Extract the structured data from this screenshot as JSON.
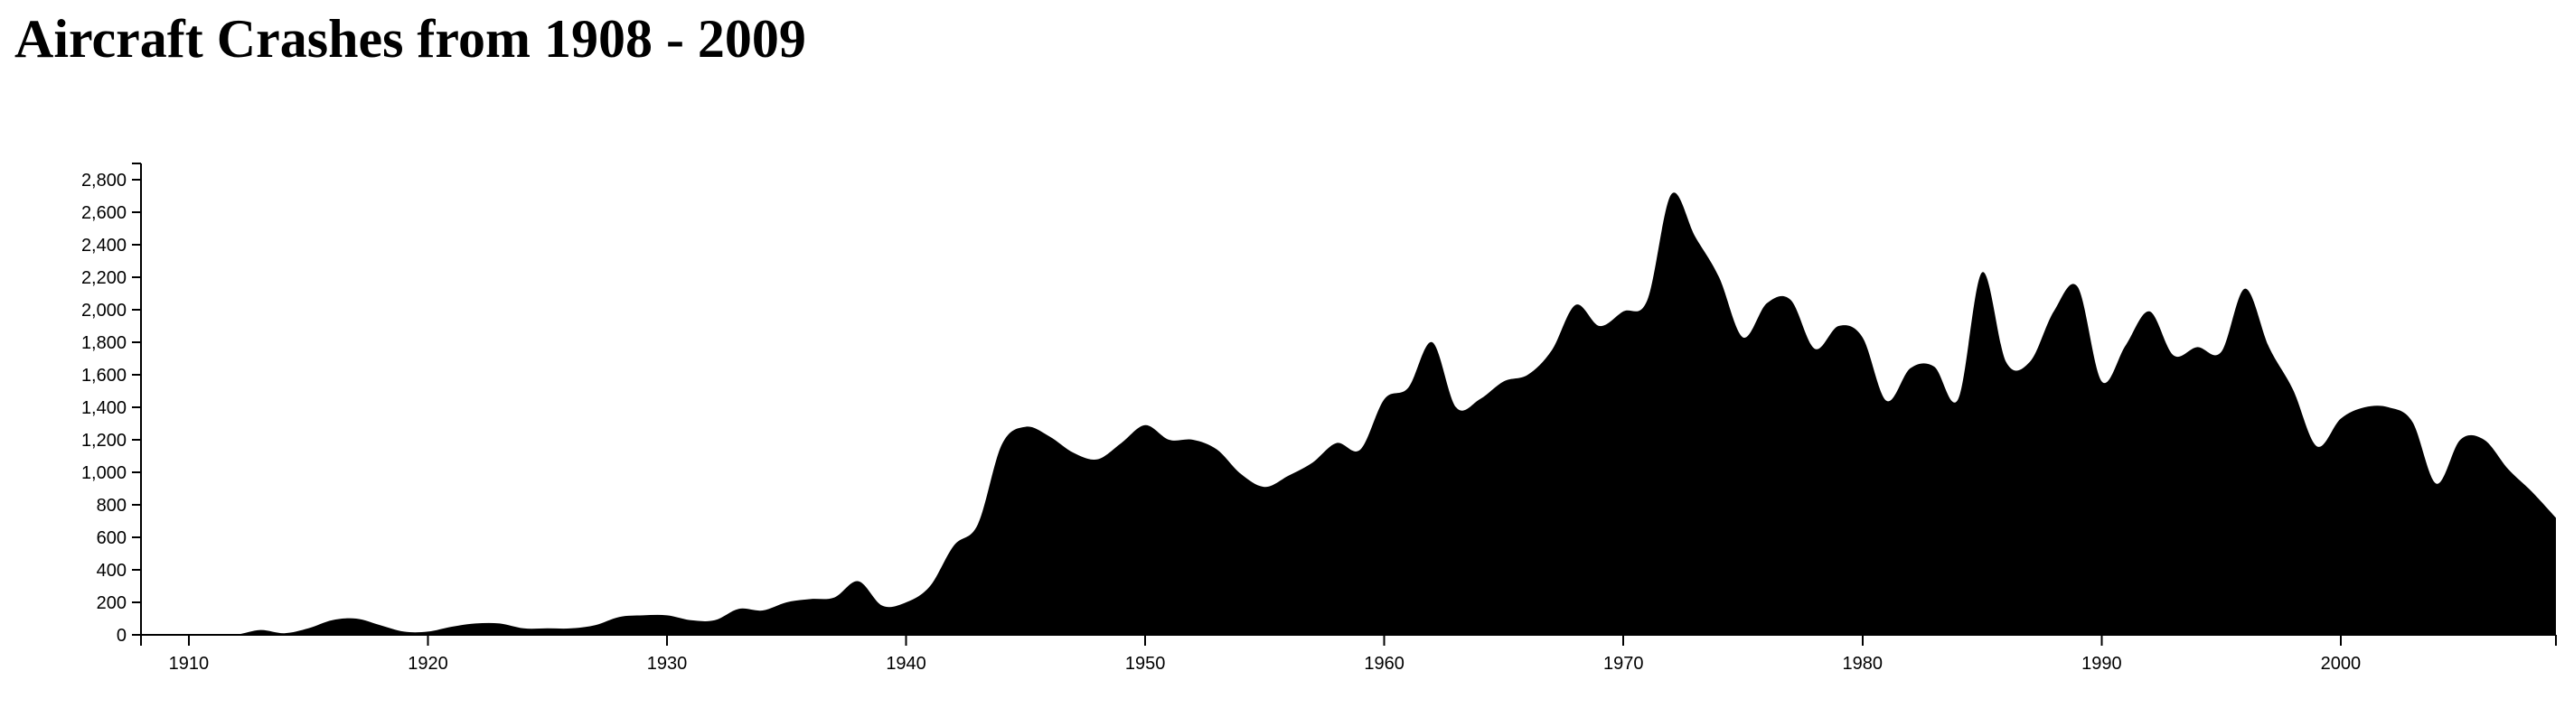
{
  "chart_data": {
    "type": "area",
    "title": "Aircraft Crashes from 1908 - 2009",
    "xlabel": "",
    "ylabel": "",
    "xlim": [
      1908,
      2009
    ],
    "ylim": [
      0,
      2900
    ],
    "grid": false,
    "legend": "none",
    "fill_color": "#000000",
    "x_ticks": [
      1910,
      1920,
      1930,
      1940,
      1950,
      1960,
      1970,
      1980,
      1990,
      2000
    ],
    "x_tick_labels": [
      "1910",
      "1920",
      "1930",
      "1940",
      "1950",
      "1960",
      "1970",
      "1980",
      "1990",
      "2000"
    ],
    "y_ticks": [
      0,
      200,
      400,
      600,
      800,
      1000,
      1200,
      1400,
      1600,
      1800,
      2000,
      2200,
      2400,
      2600,
      2800
    ],
    "y_tick_labels": [
      "0",
      "200",
      "400",
      "600",
      "800",
      "1,000",
      "1,200",
      "1,400",
      "1,600",
      "1,800",
      "2,000",
      "2,200",
      "2,400",
      "2,600",
      "2,800"
    ],
    "x": [
      1908,
      1909,
      1910,
      1911,
      1912,
      1913,
      1914,
      1915,
      1916,
      1917,
      1918,
      1919,
      1920,
      1921,
      1922,
      1923,
      1924,
      1925,
      1926,
      1927,
      1928,
      1929,
      1930,
      1931,
      1932,
      1933,
      1934,
      1935,
      1936,
      1937,
      1938,
      1939,
      1940,
      1941,
      1942,
      1943,
      1944,
      1945,
      1946,
      1947,
      1948,
      1949,
      1950,
      1951,
      1952,
      1953,
      1954,
      1955,
      1956,
      1957,
      1958,
      1959,
      1960,
      1961,
      1962,
      1963,
      1964,
      1965,
      1966,
      1967,
      1968,
      1969,
      1970,
      1971,
      1972,
      1973,
      1974,
      1975,
      1976,
      1977,
      1978,
      1979,
      1980,
      1981,
      1982,
      1983,
      1984,
      1985,
      1986,
      1987,
      1988,
      1989,
      1990,
      1991,
      1992,
      1993,
      1994,
      1995,
      1996,
      1997,
      1998,
      1999,
      2000,
      2001,
      2002,
      2003,
      2004,
      2005,
      2006,
      2007,
      2008,
      2009
    ],
    "values": [
      0,
      0,
      0,
      0,
      2,
      30,
      10,
      40,
      90,
      100,
      60,
      20,
      20,
      50,
      70,
      70,
      40,
      40,
      40,
      60,
      110,
      120,
      120,
      90,
      90,
      160,
      150,
      200,
      220,
      230,
      330,
      180,
      200,
      300,
      550,
      680,
      1170,
      1280,
      1220,
      1120,
      1080,
      1180,
      1290,
      1200,
      1200,
      1140,
      990,
      910,
      980,
      1060,
      1180,
      1140,
      1450,
      1520,
      1800,
      1400,
      1450,
      1560,
      1600,
      1750,
      2030,
      1900,
      1990,
      2060,
      2710,
      2450,
      2200,
      1830,
      2040,
      2060,
      1760,
      1900,
      1830,
      1440,
      1640,
      1650,
      1450,
      2230,
      1680,
      1680,
      1990,
      2140,
      1560,
      1780,
      1990,
      1720,
      1770,
      1740,
      2130,
      1770,
      1510,
      1160,
      1330,
      1400,
      1400,
      1310,
      930,
      1200,
      1200,
      1020,
      880,
      720
    ]
  }
}
